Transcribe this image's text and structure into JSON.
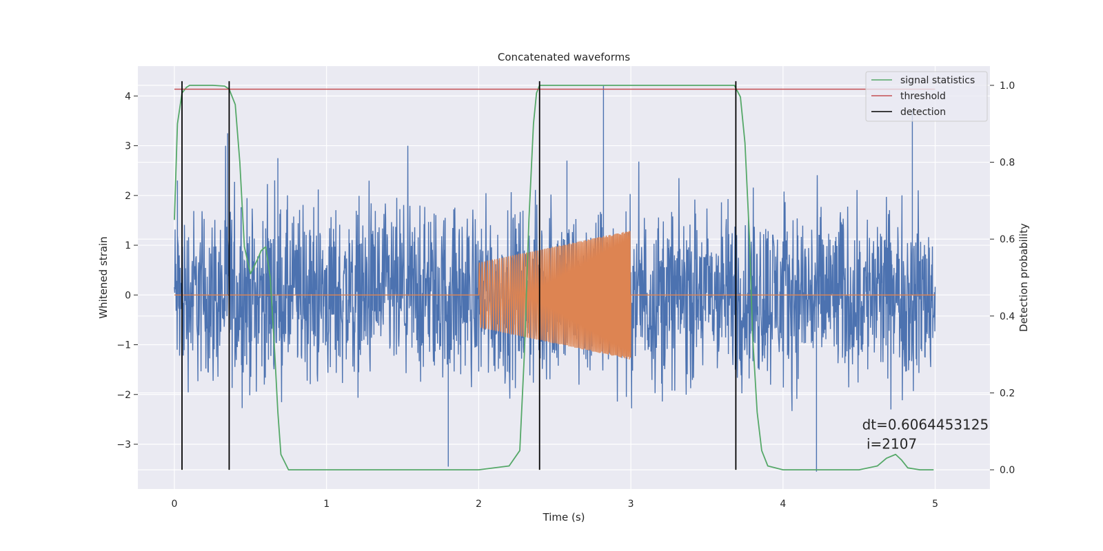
{
  "chart_data": {
    "type": "line",
    "title": "Concatenated waveforms",
    "xlabel": "Time (s)",
    "ylabel": "Whitened strain",
    "ylabel_right": "Detection probability",
    "xlim": [
      -0.24,
      5.36
    ],
    "ylim": [
      -3.9,
      4.6
    ],
    "ylim_right": [
      -0.05,
      1.05
    ],
    "xticks": [
      0,
      1,
      2,
      3,
      4,
      5
    ],
    "yticks": [
      -3,
      -2,
      -1,
      0,
      1,
      2,
      3,
      4
    ],
    "yticks_right": [
      0.0,
      0.2,
      0.4,
      0.6,
      0.8,
      1.0
    ],
    "grid": true,
    "legend_position": "top-right",
    "series": [
      {
        "name": "",
        "color": "#4c72b0",
        "kind": "noise",
        "x_range": [
          0,
          5
        ],
        "amplitude": 2.5,
        "description_peaks": [
          [
            0.02,
            2.3
          ],
          [
            0.35,
            3.25
          ],
          [
            0.68,
            2.75
          ],
          [
            1.8,
            -3.45
          ],
          [
            2.58,
            2.7
          ],
          [
            2.82,
            4.2
          ],
          [
            4.22,
            -3.55
          ],
          [
            4.85,
            3.7
          ]
        ]
      },
      {
        "name": "",
        "color": "#dd8452",
        "kind": "chirp",
        "x_range": [
          2.0,
          3.0
        ],
        "amplitude_start": 0.65,
        "amplitude_end": 1.3,
        "baseline": 0
      },
      {
        "name": "signal statistics",
        "color": "#55a868",
        "axis": "right",
        "x": [
          0.0,
          0.02,
          0.05,
          0.08,
          0.1,
          0.15,
          0.25,
          0.33,
          0.36,
          0.4,
          0.43,
          0.46,
          0.5,
          0.55,
          0.57,
          0.6,
          0.63,
          0.66,
          0.68,
          0.7,
          0.75,
          1.0,
          1.5,
          2.0,
          2.2,
          2.27,
          2.3,
          2.33,
          2.36,
          2.38,
          2.4,
          2.45,
          3.0,
          3.5,
          3.68,
          3.72,
          3.75,
          3.78,
          3.8,
          3.83,
          3.86,
          3.9,
          4.0,
          4.5,
          4.62,
          4.68,
          4.74,
          4.78,
          4.82,
          4.9,
          4.99
        ],
        "y": [
          0.65,
          0.9,
          0.98,
          0.995,
          1.0,
          1.0,
          1.0,
          0.998,
          0.99,
          0.95,
          0.8,
          0.58,
          0.51,
          0.55,
          0.57,
          0.58,
          0.5,
          0.3,
          0.15,
          0.04,
          0.0,
          0.0,
          0.0,
          0.0,
          0.01,
          0.05,
          0.3,
          0.65,
          0.9,
          0.98,
          1.0,
          1.0,
          1.0,
          1.0,
          1.0,
          0.97,
          0.85,
          0.6,
          0.35,
          0.15,
          0.05,
          0.01,
          0.0,
          0.0,
          0.01,
          0.03,
          0.04,
          0.025,
          0.005,
          0.0,
          0.0
        ]
      },
      {
        "name": "threshold",
        "color": "#c44e52",
        "axis": "right",
        "x": [
          0,
          5
        ],
        "y": [
          0.99,
          0.99
        ]
      },
      {
        "name": "detection",
        "color": "#000000",
        "axis": "right",
        "kind": "vlines",
        "x": [
          0.05,
          0.36,
          2.4,
          3.69
        ],
        "ymin": 0.0,
        "ymax": 1.0
      }
    ],
    "annotation": {
      "line1": "dt=0.6064453125",
      "line2": " i=2107",
      "x": 4.52,
      "y": -2.7
    }
  }
}
